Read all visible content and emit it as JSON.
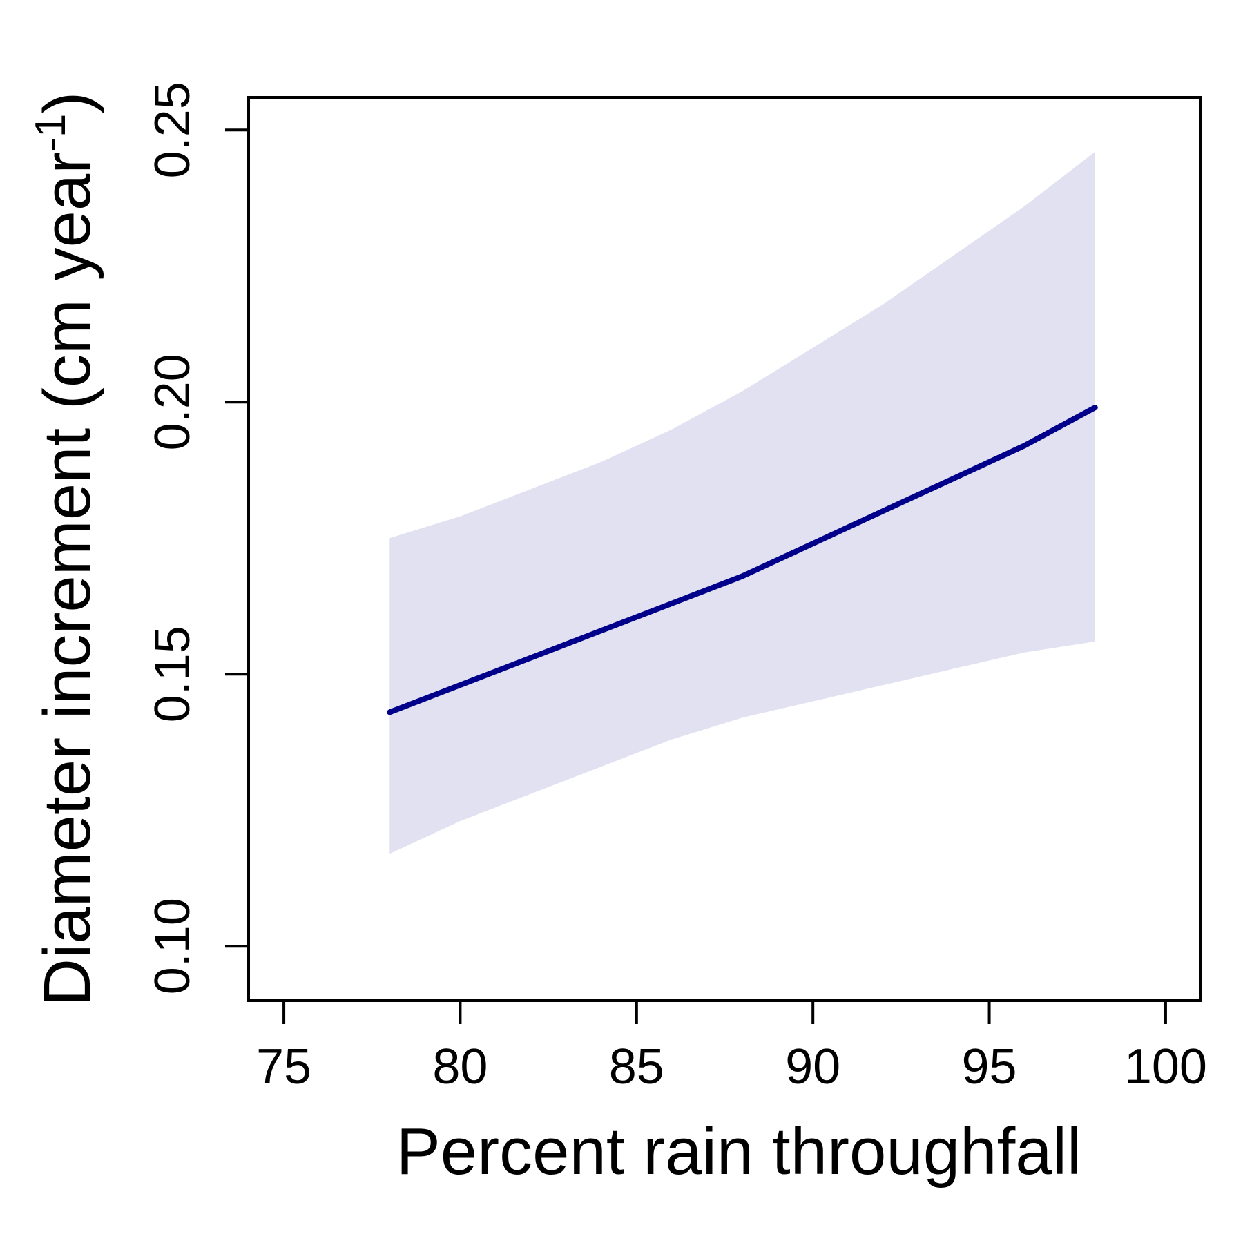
{
  "chart_data": {
    "type": "line",
    "title": "",
    "xlabel": "Percent rain throughfall",
    "ylabel_main": "Diameter increment (cm year",
    "ylabel_sup": "-1",
    "ylabel_close": ")",
    "xlim": [
      74,
      101
    ],
    "ylim": [
      0.09,
      0.256
    ],
    "xticks": [
      75,
      80,
      85,
      90,
      95,
      100
    ],
    "xtick_labels": [
      "75",
      "80",
      "85",
      "90",
      "95",
      "100"
    ],
    "yticks": [
      0.1,
      0.15,
      0.2,
      0.25
    ],
    "ytick_labels": [
      "0.10",
      "0.15",
      "0.20",
      "0.25"
    ],
    "grid": false,
    "legend": "none",
    "colors": {
      "line": "#00008B",
      "band": "#E1E1F1"
    },
    "series": [
      {
        "x": [
          78,
          80,
          82,
          84,
          86,
          88,
          90,
          92,
          94,
          96,
          98
        ],
        "y": [
          0.143,
          0.148,
          0.153,
          0.158,
          0.163,
          0.168,
          0.174,
          0.18,
          0.186,
          0.192,
          0.199
        ],
        "lower": [
          0.117,
          0.123,
          0.128,
          0.133,
          0.138,
          0.142,
          0.145,
          0.148,
          0.151,
          0.154,
          0.156
        ],
        "upper": [
          0.175,
          0.179,
          0.184,
          0.189,
          0.195,
          0.202,
          0.21,
          0.218,
          0.227,
          0.236,
          0.246
        ]
      }
    ]
  }
}
